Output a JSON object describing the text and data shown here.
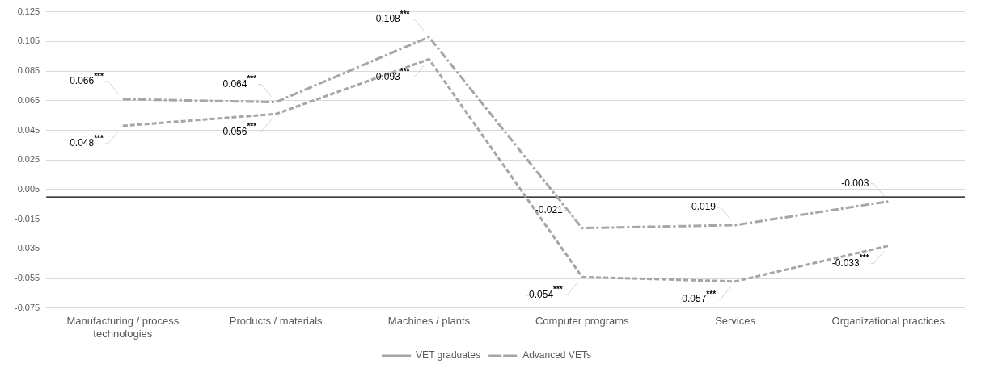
{
  "chart_data": {
    "type": "line",
    "categories": [
      "Manufacturing / process technologies",
      "Products / materials",
      "Machines / plants",
      "Computer programs",
      "Services",
      "Organizational practices"
    ],
    "series": [
      {
        "name": "VET graduates",
        "color": "#a6a6a6",
        "line_style": "dashed",
        "values": [
          0.048,
          0.056,
          0.093,
          -0.054,
          -0.057,
          -0.033
        ],
        "value_labels": [
          "0.048$^{***}$",
          "0.056$^{***}$",
          "0.093$^{***}$",
          "-0.054$^{***}$",
          "-0.057$^{***}$",
          "-0.033$^{***}$"
        ]
      },
      {
        "name": "Advanced VETs",
        "color": "#a6a6a6",
        "line_style": "dashdot",
        "values": [
          0.066,
          0.064,
          0.108,
          -0.021,
          -0.019,
          -0.003
        ],
        "value_labels": [
          "0.066$^{***}$",
          "0.064$^{***}$",
          "0.108$^{***}$",
          "-0.021",
          "-0.019",
          "-0.003"
        ]
      }
    ],
    "ylim": [
      -0.075,
      0.125
    ],
    "yticks": [
      -0.075,
      -0.055,
      -0.035,
      -0.015,
      0.005,
      0.025,
      0.045,
      0.065,
      0.085,
      0.105,
      0.125
    ],
    "ref_lines": [
      {
        "axis": "y",
        "value": 0,
        "color": "#000000"
      }
    ],
    "grid": "y",
    "legend": "bottom",
    "marker": "none"
  }
}
